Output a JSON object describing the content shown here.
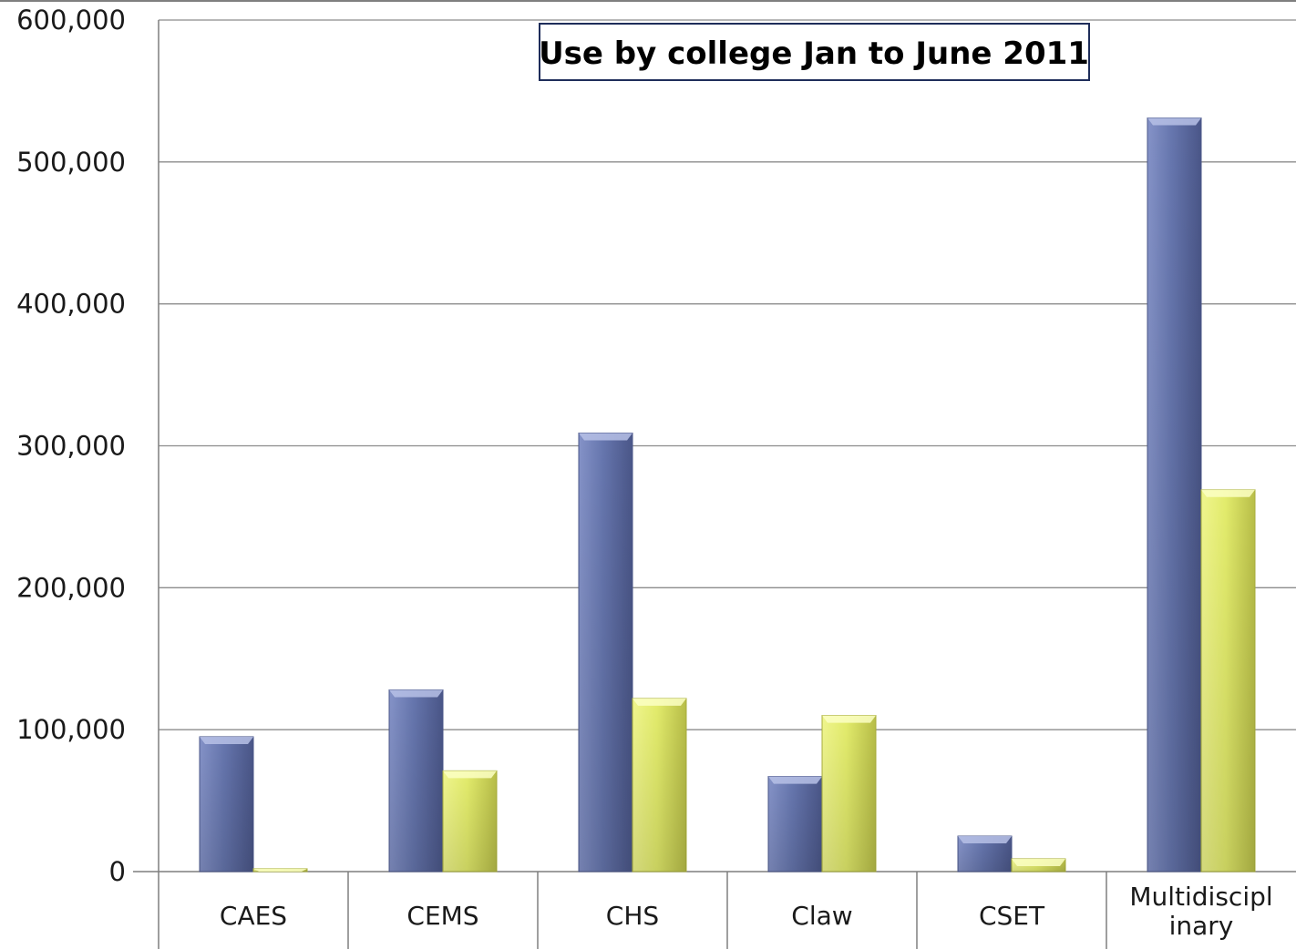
{
  "chart_data": {
    "type": "bar",
    "title": "Use by college Jan to June 2011",
    "xlabel": "",
    "ylabel": "",
    "ylim": [
      0,
      600000
    ],
    "y_ticks": [
      "0",
      "100,000",
      "200,000",
      "300,000",
      "400,000",
      "500,000",
      "600,000"
    ],
    "y_tick_values": [
      0,
      100000,
      200000,
      300000,
      400000,
      500000,
      600000
    ],
    "categories": [
      "CAES",
      "CEMS",
      "CHS",
      "Claw",
      "CSET",
      "Multidisciplinary"
    ],
    "category_label_lines": [
      [
        "CAES"
      ],
      [
        "CEMS"
      ],
      [
        "CHS"
      ],
      [
        "Claw"
      ],
      [
        "CSET"
      ],
      [
        "Multidiscipl",
        "inary"
      ]
    ],
    "series": [
      {
        "values": [
          95000,
          128000,
          309000,
          67000,
          25000,
          531000
        ],
        "color": "#6a79b0"
      },
      {
        "values": [
          2000,
          71000,
          122000,
          110000,
          9000,
          269000
        ],
        "color": "#e4ec72"
      }
    ],
    "grid": true,
    "legend": "none"
  }
}
